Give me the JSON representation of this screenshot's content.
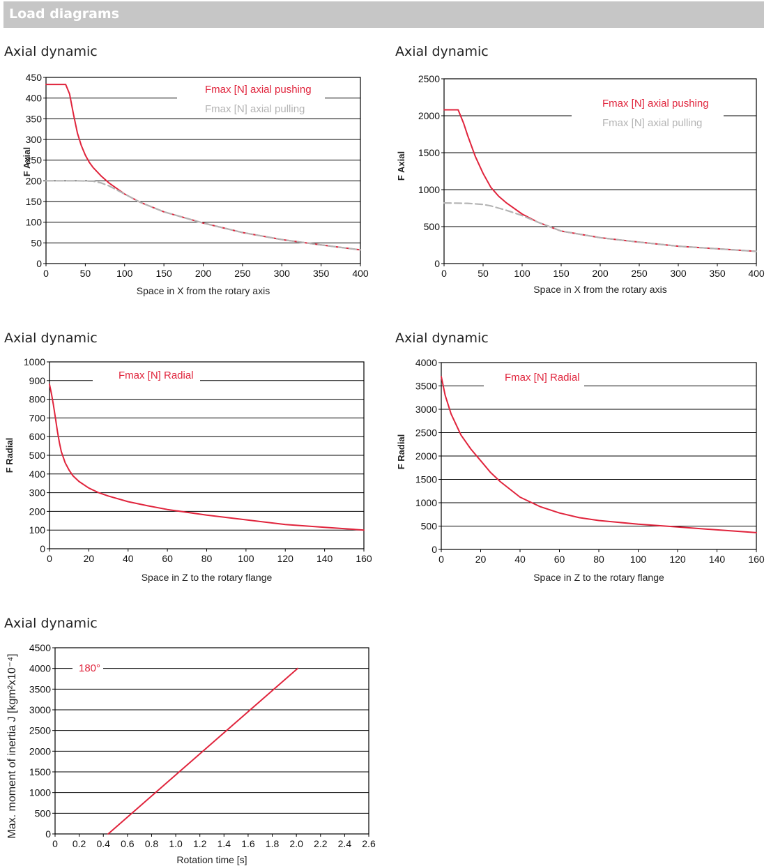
{
  "header": {
    "title": "Load diagrams"
  },
  "colors": {
    "header_bg": "#c6c6c6",
    "pushing": "#e0243c",
    "pulling": "#b4b4b4",
    "grid": "#000000"
  },
  "chart_data": [
    {
      "type": "line",
      "title": "Axial dynamic",
      "xlabel": "Space in X from the rotary axis",
      "ylabel": "F Axial",
      "xlim": [
        0,
        400
      ],
      "ylim": [
        0,
        450
      ],
      "xticks": [
        0,
        50,
        100,
        150,
        200,
        250,
        300,
        350,
        400
      ],
      "yticks": [
        0,
        50,
        100,
        150,
        200,
        250,
        300,
        350,
        400,
        450
      ],
      "grid": true,
      "legend_position": "top-center",
      "series": [
        {
          "name": "Fmax [N] axial pushing",
          "style": "solid",
          "color": "#e0243c",
          "x": [
            0,
            25,
            30,
            35,
            40,
            45,
            50,
            55,
            60,
            70,
            80,
            100,
            120,
            150,
            200,
            250,
            300,
            350,
            400
          ],
          "y": [
            433,
            433,
            410,
            360,
            315,
            285,
            262,
            245,
            232,
            212,
            195,
            168,
            148,
            125,
            98,
            75,
            58,
            45,
            33
          ]
        },
        {
          "name": "Fmax [N] axial pulling",
          "style": "dashed",
          "color": "#b4b4b4",
          "x": [
            0,
            40,
            60,
            70,
            80,
            100,
            120,
            150,
            200,
            250,
            300,
            350,
            400
          ],
          "y": [
            200,
            200,
            199,
            195,
            188,
            168,
            148,
            125,
            98,
            75,
            58,
            45,
            33
          ]
        }
      ]
    },
    {
      "type": "line",
      "title": "Axial dynamic",
      "xlabel": "Space in X from the rotary axis",
      "ylabel": "F Axial",
      "xlim": [
        0,
        400
      ],
      "ylim": [
        0,
        2500
      ],
      "xticks": [
        0,
        50,
        100,
        150,
        200,
        250,
        300,
        350,
        400
      ],
      "yticks": [
        0,
        500,
        1000,
        1500,
        2000,
        2500
      ],
      "grid": true,
      "legend_position": "top-right",
      "series": [
        {
          "name": "Fmax [N] axial pushing",
          "style": "solid",
          "color": "#e0243c",
          "x": [
            0,
            18,
            25,
            30,
            40,
            50,
            60,
            70,
            80,
            100,
            120,
            150,
            200,
            250,
            300,
            350,
            400
          ],
          "y": [
            2080,
            2080,
            1900,
            1740,
            1450,
            1220,
            1030,
            910,
            820,
            670,
            560,
            440,
            350,
            290,
            235,
            200,
            165
          ]
        },
        {
          "name": "Fmax [N] axial pulling",
          "style": "dashed",
          "color": "#b4b4b4",
          "x": [
            0,
            30,
            50,
            60,
            70,
            80,
            100,
            120,
            150,
            200,
            250,
            300,
            350,
            400
          ],
          "y": [
            820,
            815,
            800,
            780,
            750,
            720,
            650,
            560,
            440,
            350,
            290,
            235,
            200,
            165
          ]
        }
      ]
    },
    {
      "type": "line",
      "title": "Axial dynamic",
      "xlabel": "Space in Z to the rotary flange",
      "ylabel": "F Radial",
      "xlim": [
        0,
        160
      ],
      "ylim": [
        0,
        1000
      ],
      "xticks": [
        0,
        20,
        40,
        60,
        80,
        100,
        120,
        140,
        160
      ],
      "yticks": [
        0,
        100,
        200,
        300,
        400,
        500,
        600,
        700,
        800,
        900,
        1000
      ],
      "grid": true,
      "legend_position": "top-center",
      "series": [
        {
          "name": "Fmax [N] Radial",
          "style": "solid",
          "color": "#e0243c",
          "x": [
            0,
            1,
            2,
            3,
            4,
            5,
            6,
            8,
            10,
            12,
            15,
            20,
            25,
            30,
            40,
            50,
            60,
            80,
            100,
            120,
            140,
            160
          ],
          "y": [
            880,
            830,
            770,
            700,
            630,
            570,
            520,
            460,
            420,
            390,
            360,
            325,
            300,
            282,
            252,
            230,
            210,
            180,
            155,
            130,
            115,
            100
          ]
        }
      ]
    },
    {
      "type": "line",
      "title": "Axial dynamic",
      "xlabel": "Space in Z to the rotary flange",
      "ylabel": "F Radial",
      "xlim": [
        0,
        160
      ],
      "ylim": [
        0,
        4000
      ],
      "xticks": [
        0,
        20,
        40,
        60,
        80,
        100,
        120,
        140,
        160
      ],
      "yticks": [
        0,
        500,
        1000,
        1500,
        2000,
        2500,
        3000,
        3500,
        4000
      ],
      "grid": true,
      "legend_position": "top-center",
      "series": [
        {
          "name": "Fmax [N] Radial",
          "style": "solid",
          "color": "#e0243c",
          "x": [
            0,
            2,
            5,
            10,
            15,
            20,
            25,
            30,
            40,
            50,
            60,
            70,
            80,
            100,
            120,
            140,
            160
          ],
          "y": [
            3700,
            3300,
            2900,
            2450,
            2150,
            1900,
            1650,
            1450,
            1120,
            920,
            780,
            680,
            620,
            540,
            480,
            420,
            360
          ]
        }
      ]
    },
    {
      "type": "line",
      "title": "Axial dynamic",
      "xlabel": "Rotation time [s]",
      "ylabel": "Max. moment of inertia J [kgm²x10⁻⁴]",
      "xlim": [
        0,
        2.6
      ],
      "ylim": [
        0,
        4500
      ],
      "xticks": [
        "0",
        "0.2",
        "0.4",
        "0.6",
        "0.8",
        "1.0",
        "1.2",
        "1.4",
        "1.6",
        "1.8",
        "2.0",
        "2.2",
        "2.4",
        "2.6"
      ],
      "yticks": [
        0,
        500,
        1000,
        1500,
        2000,
        2500,
        3000,
        3500,
        4000,
        4500
      ],
      "grid": true,
      "legend_position": "top-left",
      "series": [
        {
          "name": "180°",
          "style": "solid",
          "color": "#e0243c",
          "x": [
            0.44,
            2.01
          ],
          "y": [
            0,
            4000
          ]
        }
      ]
    }
  ]
}
